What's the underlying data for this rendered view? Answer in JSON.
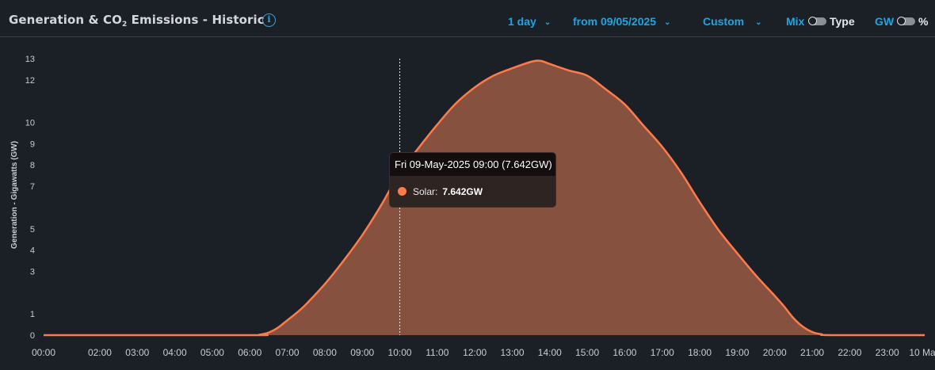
{
  "header": {
    "title_main": "Generation & CO",
    "title_sub": "2",
    "title_rest": " Emissions - Historic",
    "info_icon": "info-icon",
    "range_label": "1 day",
    "from_label": "from 09/05/2025",
    "custom_label": "Custom",
    "mix_label": "Mix",
    "type_label": "Type",
    "gw_label": "GW",
    "percent_label": "%"
  },
  "colors": {
    "accent": "#1ba6e6",
    "series_line": "#ff7b4a",
    "series_fill": "#87513f",
    "background": "#1b1f26"
  },
  "tooltip": {
    "header": "Fri 09-May-2025 09:00 (7.642GW)",
    "series_name": "Solar:",
    "value": "7.642GW"
  },
  "chart_data": {
    "type": "area",
    "ylabel": "Generation - Gigawatts (GW)",
    "xlabel": "",
    "y_ticks": [
      0,
      1,
      3,
      4,
      5,
      7,
      8,
      9,
      10,
      12,
      13
    ],
    "ylim": [
      0,
      13
    ],
    "x_tick_labels": [
      "00:00",
      "02:00",
      "03:00",
      "04:00",
      "05:00",
      "06:00",
      "07:00",
      "08:00",
      "09:00",
      "10:00",
      "11:00",
      "12:00",
      "13:00",
      "14:00",
      "15:00",
      "16:00",
      "17:00",
      "18:00",
      "19:00",
      "20:00",
      "21:00",
      "22:00",
      "23:00",
      "10 May"
    ],
    "x_hours": [
      0,
      1.5,
      2.5,
      3.5,
      4.5,
      5.5,
      6.5,
      7.5,
      8.5,
      9.5,
      10.5,
      11.5,
      12.5,
      13.5,
      14.5,
      15.5,
      16.5,
      17.5,
      18.5,
      19.5,
      20.5,
      21.5,
      22.5,
      23.5
    ],
    "hover_hour": 9.5,
    "hover_value": 7.642,
    "series": [
      {
        "name": "Solar",
        "x": [
          0,
          5.5,
          5.75,
          6.0,
          6.25,
          6.5,
          6.75,
          7.0,
          7.5,
          8.0,
          8.5,
          9.0,
          9.5,
          10.0,
          10.5,
          11.0,
          11.5,
          12.0,
          12.5,
          13.0,
          13.25,
          13.5,
          14.0,
          14.5,
          15.0,
          15.5,
          16.0,
          16.5,
          17.0,
          17.5,
          18.0,
          18.5,
          19.0,
          19.5,
          19.75,
          20.0,
          20.25,
          20.5,
          20.75,
          21.0,
          23.5
        ],
        "values": [
          0,
          0,
          0.02,
          0.12,
          0.35,
          0.7,
          1.05,
          1.45,
          2.4,
          3.5,
          4.7,
          6.1,
          7.64,
          8.8,
          9.9,
          10.9,
          11.65,
          12.2,
          12.55,
          12.85,
          12.9,
          12.75,
          12.45,
          12.2,
          11.55,
          10.85,
          9.85,
          8.85,
          7.65,
          6.25,
          4.95,
          3.85,
          2.8,
          1.85,
          1.35,
          0.8,
          0.4,
          0.15,
          0.04,
          0,
          0
        ]
      }
    ],
    "grid": false,
    "legend": "none"
  }
}
